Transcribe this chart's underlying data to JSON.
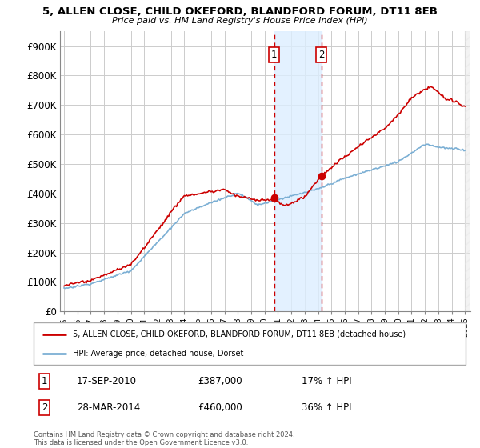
{
  "title": "5, ALLEN CLOSE, CHILD OKEFORD, BLANDFORD FORUM, DT11 8EB",
  "subtitle": "Price paid vs. HM Land Registry's House Price Index (HPI)",
  "ylabel_ticks": [
    "£0",
    "£100K",
    "£200K",
    "£300K",
    "£400K",
    "£500K",
    "£600K",
    "£700K",
    "£800K",
    "£900K"
  ],
  "ytick_values": [
    0,
    100000,
    200000,
    300000,
    400000,
    500000,
    600000,
    700000,
    800000,
    900000
  ],
  "ylim": [
    0,
    950000
  ],
  "legend_property": "5, ALLEN CLOSE, CHILD OKEFORD, BLANDFORD FORUM, DT11 8EB (detached house)",
  "legend_hpi": "HPI: Average price, detached house, Dorset",
  "sale1_date": "17-SEP-2010",
  "sale1_price": 387000,
  "sale1_label": "1",
  "sale1_hpi": "17% ↑ HPI",
  "sale2_date": "28-MAR-2014",
  "sale2_price": 460000,
  "sale2_label": "2",
  "sale2_hpi": "36% ↑ HPI",
  "footnote_line1": "Contains HM Land Registry data © Crown copyright and database right 2024.",
  "footnote_line2": "This data is licensed under the Open Government Licence v3.0.",
  "property_color": "#cc0000",
  "hpi_color": "#7bafd4",
  "shade_color": "#ddeeff",
  "vline_color": "#cc0000",
  "background_color": "#ffffff",
  "sale1_year": 2010.72,
  "sale2_year": 2014.24,
  "hatch_color": "#cccccc"
}
